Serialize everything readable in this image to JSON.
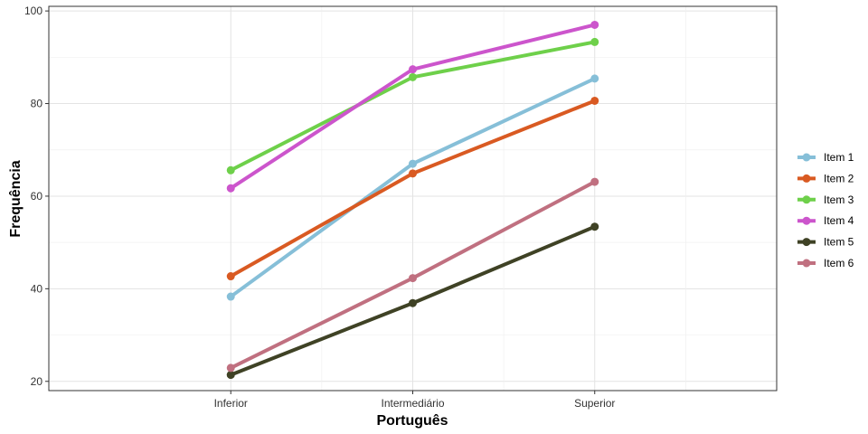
{
  "chart_data": {
    "type": "line",
    "xlabel": "Português",
    "ylabel": "Frequência",
    "categories": [
      "Inferior",
      "Intermediário",
      "Superior"
    ],
    "ylim": [
      18,
      101
    ],
    "yticks": [
      20,
      40,
      60,
      80,
      100
    ],
    "grid": true,
    "legend_position": "right",
    "series": [
      {
        "name": "Item 1",
        "color": "#86BFD8",
        "values": [
          38.3,
          67.0,
          85.4
        ]
      },
      {
        "name": "Item 2",
        "color": "#D95A22",
        "values": [
          42.7,
          64.9,
          80.6
        ]
      },
      {
        "name": "Item 3",
        "color": "#6ED04A",
        "values": [
          65.6,
          85.7,
          93.3
        ]
      },
      {
        "name": "Item 4",
        "color": "#CC55CC",
        "values": [
          61.7,
          87.4,
          97.0
        ]
      },
      {
        "name": "Item 5",
        "color": "#3F4225",
        "values": [
          21.4,
          36.9,
          53.4
        ]
      },
      {
        "name": "Item 6",
        "color": "#C07080",
        "values": [
          22.9,
          42.3,
          63.1
        ]
      }
    ]
  }
}
